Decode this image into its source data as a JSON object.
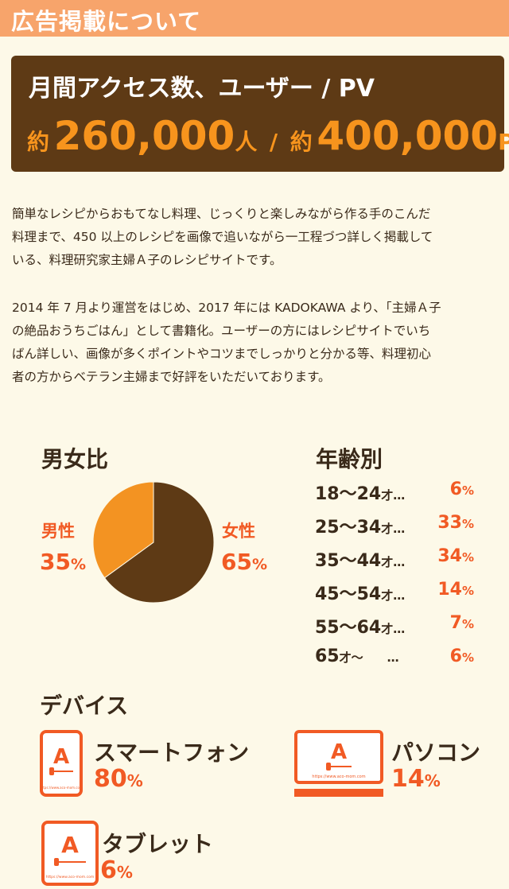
{
  "header": {
    "title": "広告掲載について"
  },
  "stats": {
    "heading": "月間アクセス数、ユーザー / PV",
    "approx1": "約",
    "users": "260,000",
    "users_unit": "人",
    "sep": "/",
    "approx2": "約",
    "pv": "400,000",
    "pv_unit": "PV"
  },
  "description": {
    "p1_lines": [
      "簡単なレシピからおもてなし料理、じっくりと楽しみながら作る手のこんだ",
      "料理まで、450 以上のレシピを画像で追いながら一工程づつ詳しく掲載して",
      "いる、料理研究家主婦Ａ子のレシピサイトです。"
    ],
    "p2_lines": [
      "2014 年 7 月より運営をはじめ、2017 年には KADOKAWA より、「主婦Ａ子",
      "の絶品おうちごはん」として書籍化。ユーザーの方にはレシピサイトでいち",
      "ばん詳しい、画像が多くポイントやコツまでしっかりと分かる等、料理初心",
      "者の方からベテラン主婦まで好評をいただいております。"
    ]
  },
  "gender": {
    "title": "男女比",
    "male_label": "男性",
    "male_value": "35",
    "male_unit": "%",
    "female_label": "女性",
    "female_value": "65",
    "female_unit": "%"
  },
  "chart_data": {
    "type": "pie",
    "categories": [
      "男性",
      "女性"
    ],
    "values": [
      35,
      65
    ],
    "colors": [
      "#f39322",
      "#5e3a15"
    ]
  },
  "age": {
    "title": "年齢別",
    "rows": [
      {
        "range": "18～24",
        "suffix": "才…",
        "value": "6",
        "unit": "%"
      },
      {
        "range": "25～34",
        "suffix": "才…",
        "value": "33",
        "unit": "%"
      },
      {
        "range": "35～44",
        "suffix": "才…",
        "value": "34",
        "unit": "%"
      },
      {
        "range": "45～54",
        "suffix": "才…",
        "value": "14",
        "unit": "%"
      },
      {
        "range": "55～64",
        "suffix": "才…",
        "value": "7",
        "unit": "%"
      },
      {
        "range": "65",
        "suffix": "才～　　…",
        "value": "6",
        "unit": "%"
      }
    ]
  },
  "devices": {
    "title": "デバイス",
    "logo_letter": "A",
    "site_url": "https://www.aco-mom.com",
    "smartphone": {
      "label": "スマートフォン",
      "value": "80",
      "unit": "%"
    },
    "pc": {
      "label": "パソコン",
      "value": "14",
      "unit": "%"
    },
    "tablet": {
      "label": "タブレット",
      "value": "6",
      "unit": "%"
    }
  },
  "colors": {
    "brown": "#5e3a15",
    "orange": "#f15a24",
    "header": "#f7a46b",
    "pie_orange": "#f39322",
    "background": "#fdf9e8"
  }
}
